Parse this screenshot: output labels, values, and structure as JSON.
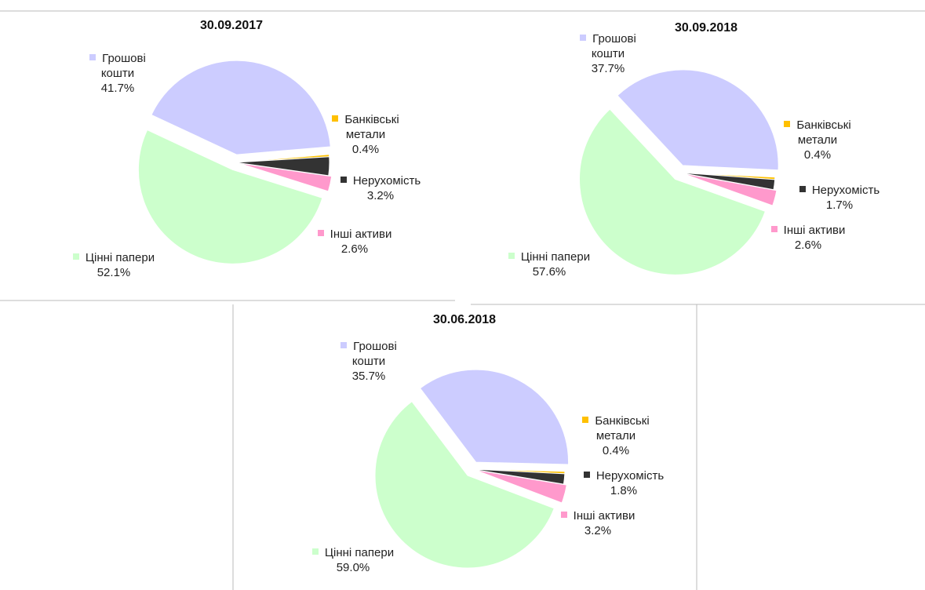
{
  "chart_data": [
    {
      "type": "pie",
      "title": "30.09.2017",
      "categories": [
        "Грошові кошти",
        "Банківські метали",
        "Нерухомість",
        "Інші активи",
        "Цінні папери"
      ],
      "values": [
        41.7,
        0.4,
        3.2,
        2.6,
        52.1
      ],
      "value_labels": [
        "41.7%",
        "0.4%",
        "3.2%",
        "2.6%",
        "52.1%"
      ],
      "colors": [
        "#ccccff",
        "#ffc000",
        "#333333",
        "#ff99cc",
        "#ccffcc"
      ]
    },
    {
      "type": "pie",
      "title": "30.09.2018",
      "categories": [
        "Грошові кошти",
        "Банківські метали",
        "Нерухомість",
        "Інші активи",
        "Цінні папери"
      ],
      "values": [
        37.7,
        0.4,
        1.7,
        2.6,
        57.6
      ],
      "value_labels": [
        "37.7%",
        "0.4%",
        "1.7%",
        "2.6%",
        "57.6%"
      ],
      "colors": [
        "#ccccff",
        "#ffc000",
        "#333333",
        "#ff99cc",
        "#ccffcc"
      ]
    },
    {
      "type": "pie",
      "title": "30.06.2018",
      "categories": [
        "Грошові кошти",
        "Банківські метали",
        "Нерухомість",
        "Інші активи",
        "Цінні папери"
      ],
      "values": [
        35.7,
        0.4,
        1.8,
        3.2,
        59.0
      ],
      "value_labels": [
        "35.7%",
        "0.4%",
        "1.8%",
        "3.2%",
        "59.0%"
      ],
      "colors": [
        "#ccccff",
        "#ffc000",
        "#333333",
        "#ff99cc",
        "#ccffcc"
      ]
    }
  ]
}
